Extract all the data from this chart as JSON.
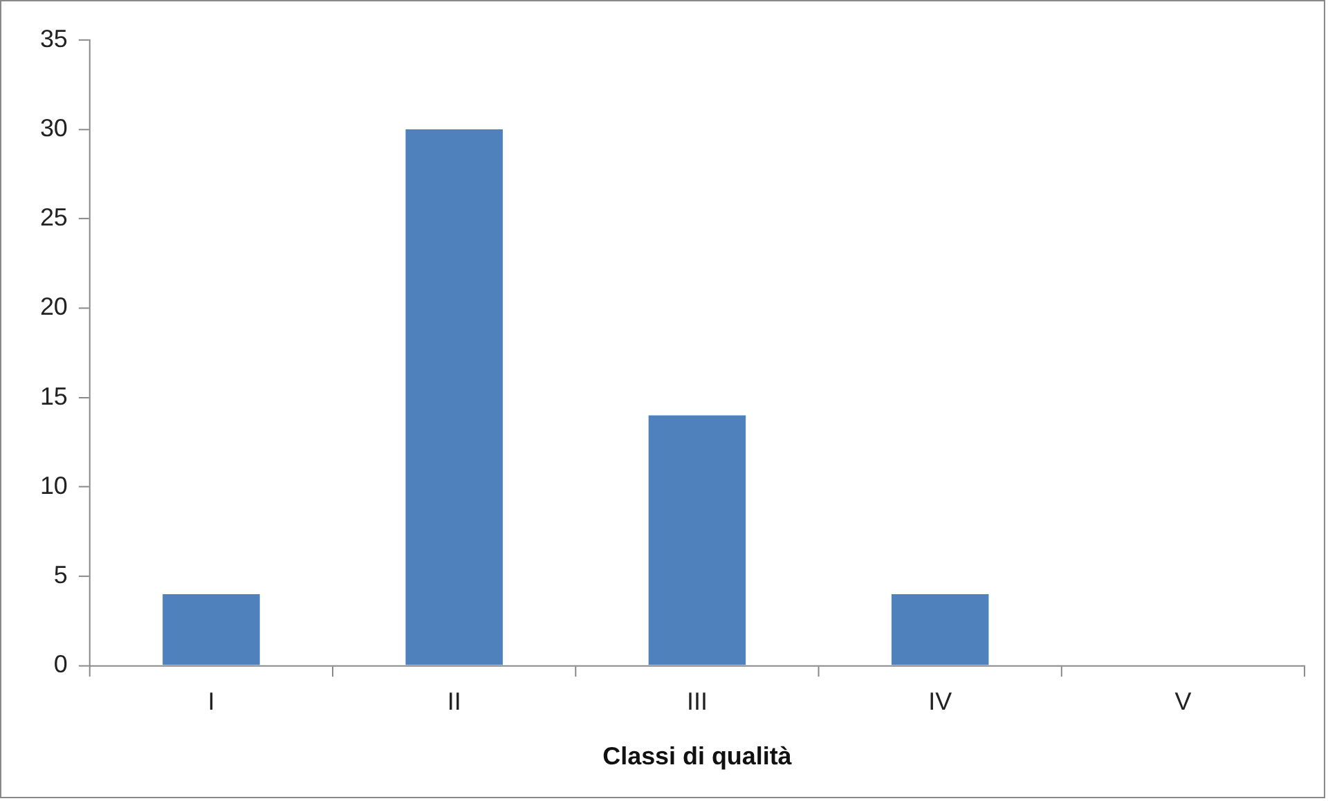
{
  "chart_data": {
    "type": "bar",
    "xlabel": "Classi di qualità",
    "categories": [
      "I",
      "II",
      "III",
      "IV",
      "V"
    ],
    "values": [
      4,
      30,
      14,
      4,
      0
    ],
    "color": "#4f81bd",
    "ylim": [
      0,
      35
    ],
    "yticks": [
      0,
      5,
      10,
      15,
      20,
      25,
      30,
      35
    ],
    "grid": false,
    "legend": false
  }
}
